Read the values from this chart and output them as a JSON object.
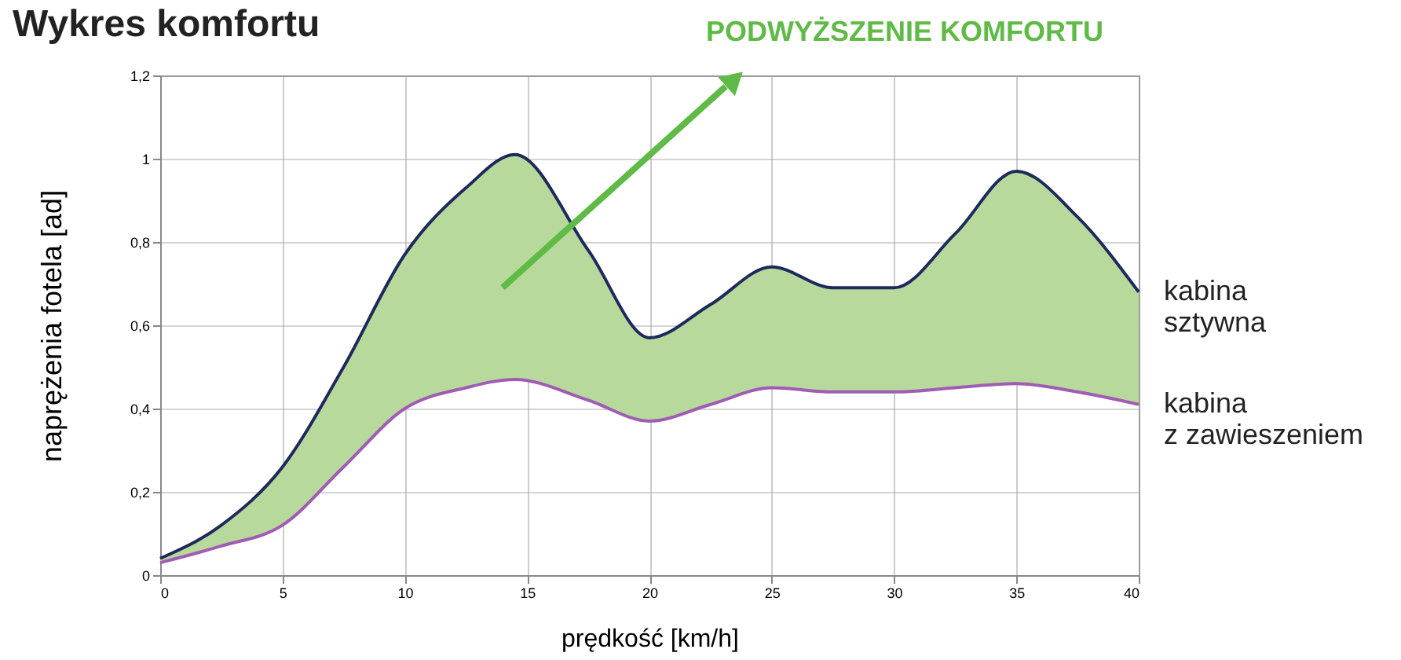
{
  "chart_data": {
    "type": "line",
    "title": "Wykres komfortu",
    "xlabel": "prędkość [km/h]",
    "ylabel": "naprężenia fotela [ad]",
    "annotations": [
      "PODWYŻSZENIE KOMFORTU"
    ],
    "x": [
      0,
      2.5,
      5,
      7.5,
      10,
      12.5,
      14.5,
      17.5,
      20,
      22.5,
      25,
      27.5,
      30,
      32.5,
      35,
      37.5,
      40
    ],
    "series": [
      {
        "type": "area",
        "color": "#b7d99b",
        "values": [
          0.04,
          0.12,
          0.26,
          0.5,
          0.77,
          0.93,
          1.01,
          0.78,
          0.57,
          0.65,
          0.74,
          0.69,
          0.69,
          0.82,
          0.97,
          0.86,
          0.68
        ]
      },
      {
        "name": "kabina sztywna",
        "color": "#1f2a5c",
        "values": [
          0.04,
          0.12,
          0.26,
          0.5,
          0.77,
          0.93,
          1.01,
          0.78,
          0.57,
          0.65,
          0.74,
          0.69,
          0.69,
          0.82,
          0.97,
          0.86,
          0.68
        ]
      },
      {
        "name": "kabina z zawieszeniem",
        "color": "#a05cb4",
        "values": [
          0.03,
          0.07,
          0.12,
          0.26,
          0.4,
          0.45,
          0.47,
          0.42,
          0.37,
          0.41,
          0.45,
          0.44,
          0.44,
          0.45,
          0.46,
          0.44,
          0.41
        ]
      }
    ],
    "xlim": [
      0,
      40
    ],
    "xticks": [
      0,
      5,
      10,
      15,
      20,
      25,
      30,
      35,
      40
    ],
    "ylim": [
      0,
      1.2
    ],
    "yticks": [
      0,
      {
        "value": 0.2,
        "label": "0,2"
      },
      {
        "value": 0.4,
        "label": "0,4"
      },
      {
        "value": 0.6,
        "label": "0,6"
      },
      {
        "value": 0.8,
        "label": "0,8"
      },
      1,
      {
        "value": 1.2,
        "label": "1,2"
      }
    ],
    "grid": true,
    "line_style": "solid",
    "marker": "none"
  }
}
